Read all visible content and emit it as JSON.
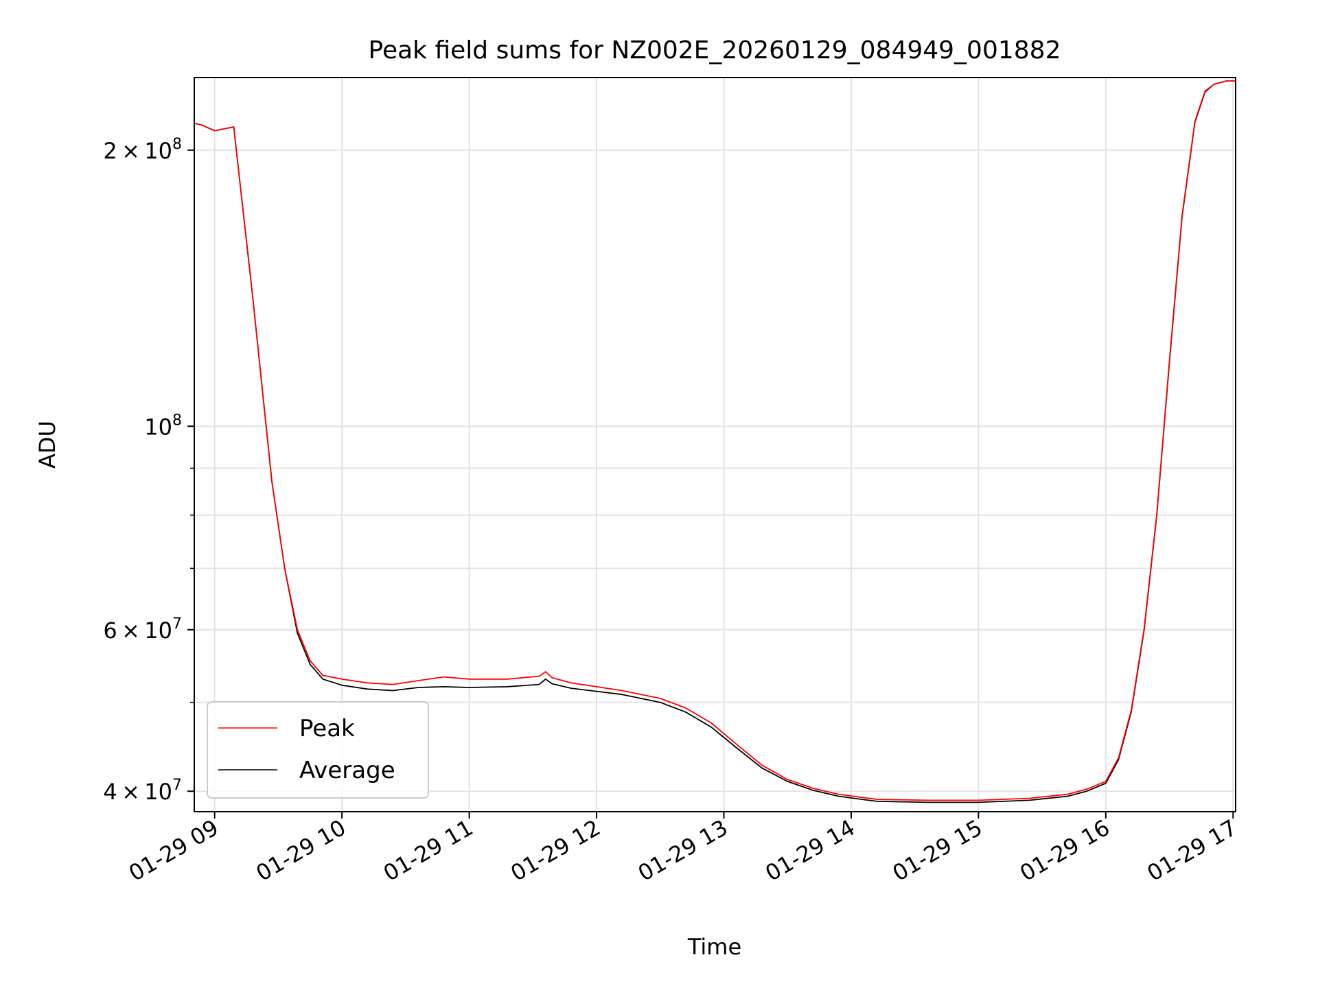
{
  "chart_data": {
    "type": "line",
    "title": "Peak field sums for NZ002E_20260129_084949_001882",
    "xlabel": "Time",
    "ylabel": "ADU",
    "yscale": "log",
    "xlim": [
      8.84,
      17.02
    ],
    "ylim": [
      38000000.0,
      240000000.0
    ],
    "grid": true,
    "legend_position": "lower-left",
    "xticks": [
      {
        "value": 9,
        "label": "01-29 09"
      },
      {
        "value": 10,
        "label": "01-29 10"
      },
      {
        "value": 11,
        "label": "01-29 11"
      },
      {
        "value": 12,
        "label": "01-29 12"
      },
      {
        "value": 13,
        "label": "01-29 13"
      },
      {
        "value": 14,
        "label": "01-29 14"
      },
      {
        "value": 15,
        "label": "01-29 15"
      },
      {
        "value": 16,
        "label": "01-29 16"
      },
      {
        "value": 17,
        "label": "01-29 17"
      }
    ],
    "yticks_major": [
      {
        "value": 200000000,
        "mant": "2 × 10",
        "exp": "8"
      },
      {
        "value": 100000000,
        "mant": "10",
        "exp": "8"
      },
      {
        "value": 60000000,
        "mant": "6 × 10",
        "exp": "7"
      },
      {
        "value": 40000000,
        "mant": "4 × 10",
        "exp": "7"
      }
    ],
    "yticks_minor": [
      50000000,
      70000000,
      80000000,
      90000000
    ],
    "series": [
      {
        "name": "Peak",
        "color": "#ff0000",
        "x": [
          8.84,
          8.9,
          9.0,
          9.15,
          9.3,
          9.45,
          9.55,
          9.65,
          9.75,
          9.85,
          10.0,
          10.2,
          10.4,
          10.6,
          10.8,
          11.0,
          11.3,
          11.55,
          11.6,
          11.65,
          11.8,
          12.0,
          12.2,
          12.5,
          12.7,
          12.9,
          13.1,
          13.3,
          13.5,
          13.7,
          13.9,
          14.2,
          14.6,
          15.0,
          15.4,
          15.7,
          15.85,
          16.0,
          16.1,
          16.2,
          16.3,
          16.4,
          16.5,
          16.6,
          16.7,
          16.78,
          16.85,
          16.95,
          17.02
        ],
        "values": [
          214000000,
          213000000,
          210000000,
          212000000,
          138000000,
          87000000,
          70000000,
          60000000,
          55500000,
          53500000,
          53000000,
          52500000,
          52300000,
          52800000,
          53300000,
          53000000,
          53000000,
          53400000,
          54000000,
          53200000,
          52500000,
          52000000,
          51500000,
          50500000,
          49300000,
          47500000,
          45000000,
          42700000,
          41200000,
          40300000,
          39700000,
          39200000,
          39100000,
          39100000,
          39300000,
          39700000,
          40200000,
          41000000,
          43500000,
          49000000,
          60000000,
          80000000,
          118000000,
          170000000,
          215000000,
          232000000,
          236000000,
          238000000,
          238000000
        ]
      },
      {
        "name": "Average",
        "color": "#000000",
        "x": [
          8.84,
          8.9,
          9.0,
          9.15,
          9.3,
          9.45,
          9.55,
          9.65,
          9.75,
          9.85,
          10.0,
          10.2,
          10.4,
          10.6,
          10.8,
          11.0,
          11.3,
          11.55,
          11.6,
          11.65,
          11.8,
          12.0,
          12.2,
          12.5,
          12.7,
          12.9,
          13.1,
          13.3,
          13.5,
          13.7,
          13.9,
          14.2,
          14.6,
          15.0,
          15.4,
          15.7,
          15.85,
          16.0,
          16.1,
          16.2,
          16.3,
          16.4,
          16.5,
          16.6,
          16.7,
          16.78,
          16.85,
          16.95,
          17.02
        ],
        "values": [
          214000000,
          213000000,
          210000000,
          212000000,
          138000000,
          87000000,
          70000000,
          59500000,
          55000000,
          53000000,
          52200000,
          51700000,
          51500000,
          51900000,
          52000000,
          51900000,
          52000000,
          52300000,
          53000000,
          52400000,
          51800000,
          51400000,
          51000000,
          50000000,
          48800000,
          47000000,
          44600000,
          42400000,
          41000000,
          40100000,
          39500000,
          39000000,
          38900000,
          38900000,
          39100000,
          39500000,
          40000000,
          40800000,
          43300000,
          48800000,
          59800000,
          79800000,
          117500000,
          169500000,
          214500000,
          231500000,
          236000000,
          238000000,
          238000000
        ]
      }
    ]
  }
}
